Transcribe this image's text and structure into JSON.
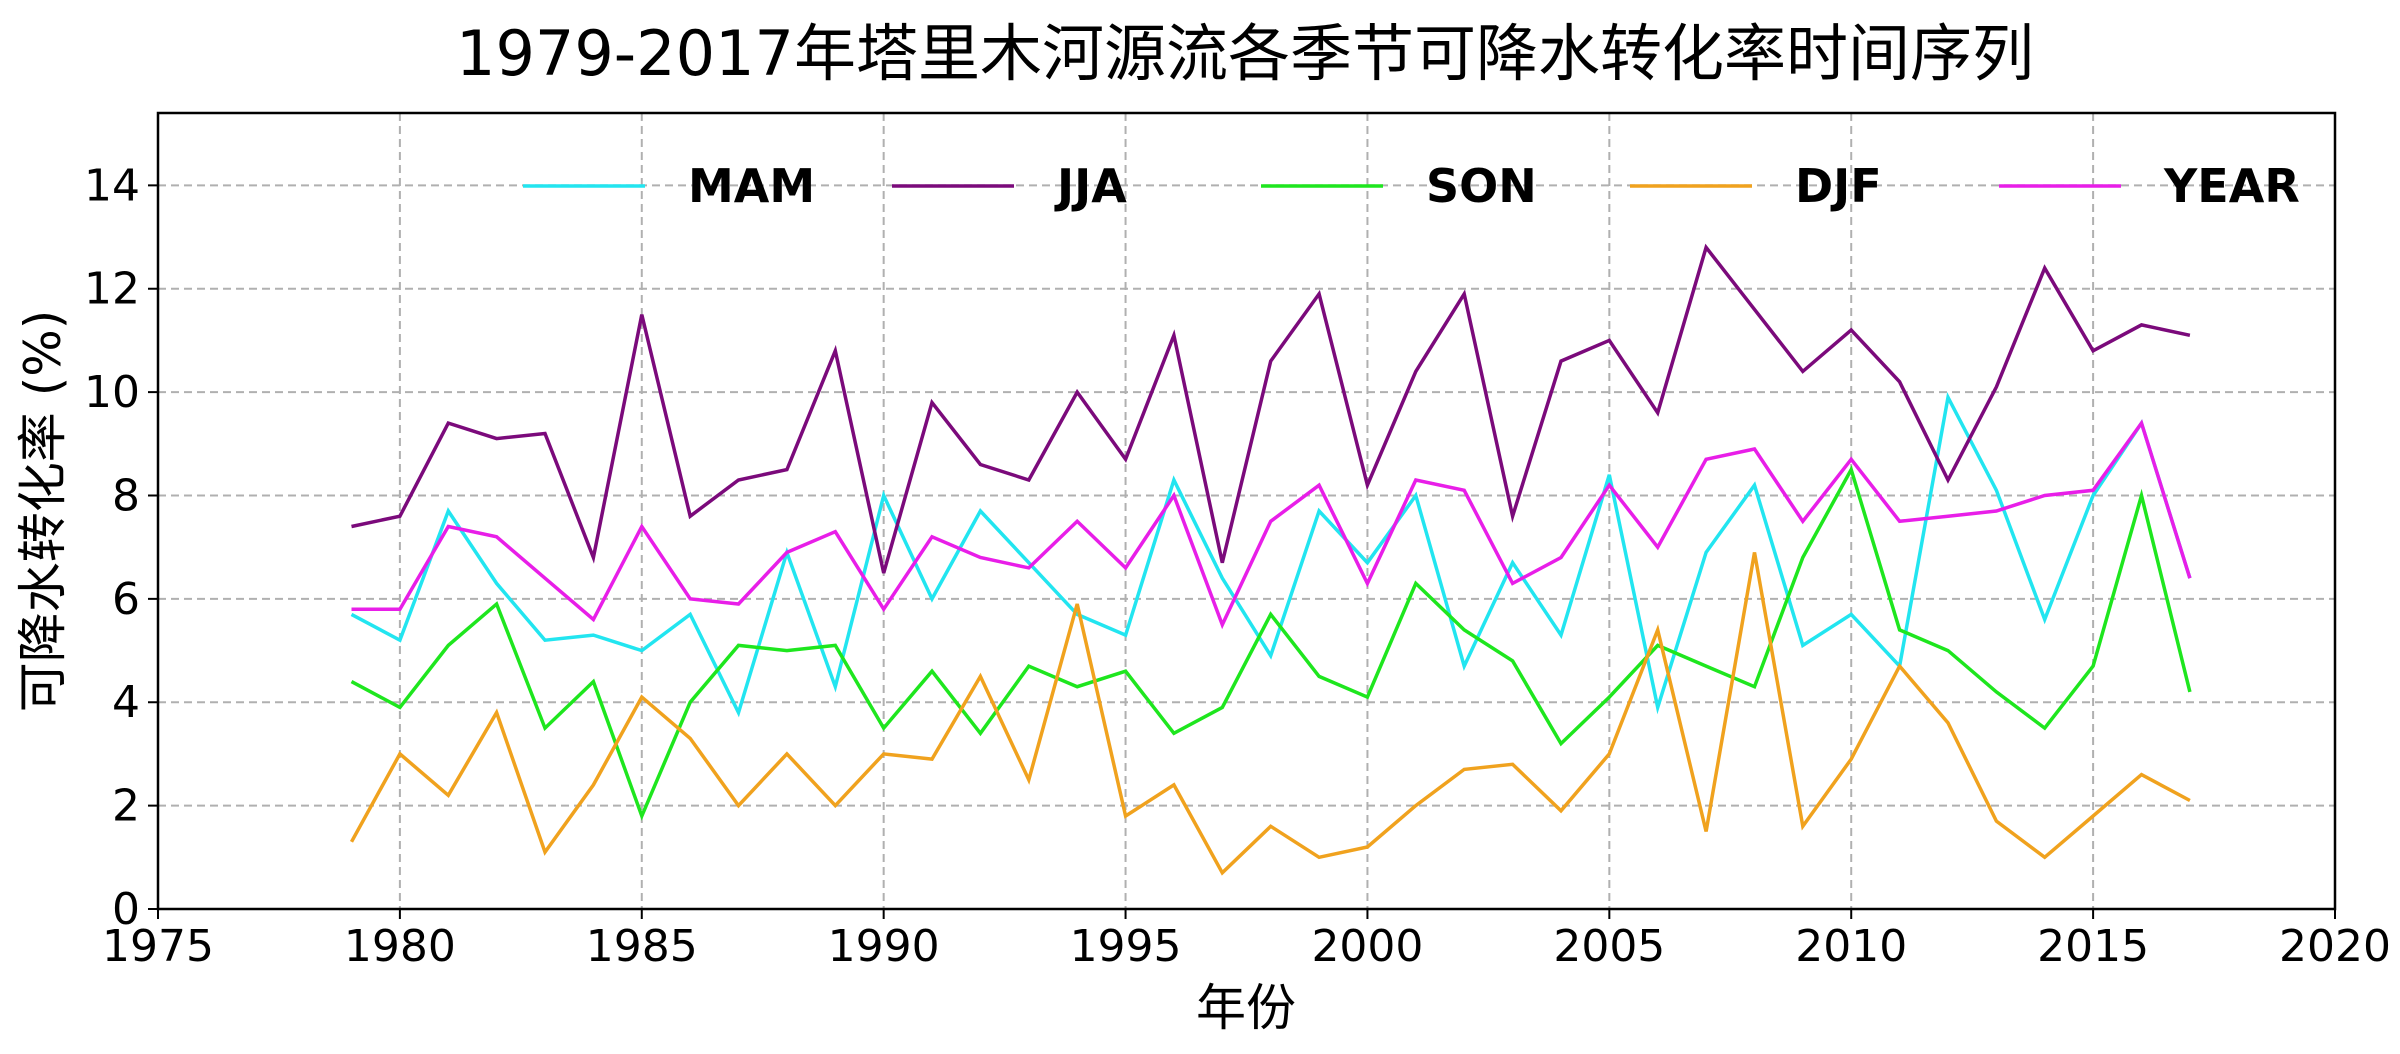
{
  "chart_data": {
    "type": "line",
    "title": "1979-2017年塔里木河源流各季节可降水转化率时间序列",
    "xlabel": "年份",
    "ylabel": "可降水转化率 (%)",
    "xlim": [
      1975,
      2020
    ],
    "ylim": [
      0,
      15.4
    ],
    "xticks": [
      1975,
      1980,
      1985,
      1990,
      1995,
      2000,
      2005,
      2010,
      2015,
      2020
    ],
    "yticks": [
      0,
      2,
      4,
      6,
      8,
      10,
      12,
      14
    ],
    "grid": true,
    "legend_placement": "top",
    "x": [
      1979,
      1980,
      1981,
      1982,
      1983,
      1984,
      1985,
      1986,
      1987,
      1988,
      1989,
      1990,
      1991,
      1992,
      1993,
      1994,
      1995,
      1996,
      1997,
      1998,
      1999,
      2000,
      2001,
      2002,
      2003,
      2004,
      2005,
      2006,
      2007,
      2008,
      2009,
      2010,
      2011,
      2012,
      2013,
      2014,
      2015,
      2016,
      2017
    ],
    "series": [
      {
        "name": "MAM",
        "color": "#22e5f0",
        "values": [
          5.7,
          5.2,
          7.7,
          6.3,
          5.2,
          5.3,
          5.0,
          5.7,
          3.8,
          6.9,
          4.3,
          8.0,
          6.0,
          7.7,
          6.7,
          5.7,
          5.3,
          8.3,
          6.4,
          4.9,
          7.7,
          6.7,
          8.0,
          4.7,
          6.7,
          5.3,
          8.4,
          3.9,
          6.9,
          8.2,
          5.1,
          5.7,
          4.7,
          9.9,
          8.1,
          5.6,
          8.0,
          9.4,
          6.4
        ]
      },
      {
        "name": "JJA",
        "color": "#7b0a7b",
        "values": [
          7.4,
          7.6,
          9.4,
          9.1,
          9.2,
          6.8,
          11.5,
          7.6,
          8.3,
          8.5,
          10.8,
          6.5,
          9.8,
          8.6,
          8.3,
          10.0,
          8.7,
          11.1,
          6.7,
          10.6,
          11.9,
          8.2,
          10.4,
          11.9,
          7.6,
          10.6,
          11.0,
          9.6,
          12.8,
          11.6,
          10.4,
          11.2,
          10.2,
          8.3,
          10.1,
          12.4,
          10.8,
          11.3,
          11.1
        ]
      },
      {
        "name": "SON",
        "color": "#1ee61e",
        "values": [
          4.4,
          3.9,
          5.1,
          5.9,
          3.5,
          4.4,
          1.8,
          4.0,
          5.1,
          5.0,
          5.1,
          3.5,
          4.6,
          3.4,
          4.7,
          4.3,
          4.6,
          3.4,
          3.9,
          5.7,
          4.5,
          4.1,
          6.3,
          5.4,
          4.8,
          3.2,
          4.1,
          5.1,
          4.7,
          4.3,
          6.8,
          8.5,
          5.4,
          5.0,
          4.2,
          3.5,
          4.7,
          8.0,
          4.2
        ]
      },
      {
        "name": "DJF",
        "color": "#f0a21e",
        "values": [
          1.3,
          3.0,
          2.2,
          3.8,
          1.1,
          2.4,
          4.1,
          3.3,
          2.0,
          3.0,
          2.0,
          3.0,
          2.9,
          4.5,
          2.5,
          5.9,
          1.8,
          2.4,
          0.7,
          1.6,
          1.0,
          1.2,
          2.0,
          2.7,
          2.8,
          1.9,
          3.0,
          5.4,
          1.5,
          6.9,
          1.6,
          2.9,
          4.7,
          3.6,
          1.7,
          1.0,
          1.8,
          2.6,
          2.1
        ]
      },
      {
        "name": "YEAR",
        "color": "#e81ee8",
        "values": [
          5.8,
          5.8,
          7.4,
          7.2,
          6.4,
          5.6,
          7.4,
          6.0,
          5.9,
          6.9,
          7.3,
          5.8,
          7.2,
          6.8,
          6.6,
          7.5,
          6.6,
          8.0,
          5.5,
          7.5,
          8.2,
          6.3,
          8.3,
          8.1,
          6.3,
          6.8,
          8.2,
          7.0,
          8.7,
          8.9,
          7.5,
          8.7,
          7.5,
          7.6,
          7.7,
          8.0,
          8.1,
          9.4,
          6.4
        ]
      }
    ]
  }
}
